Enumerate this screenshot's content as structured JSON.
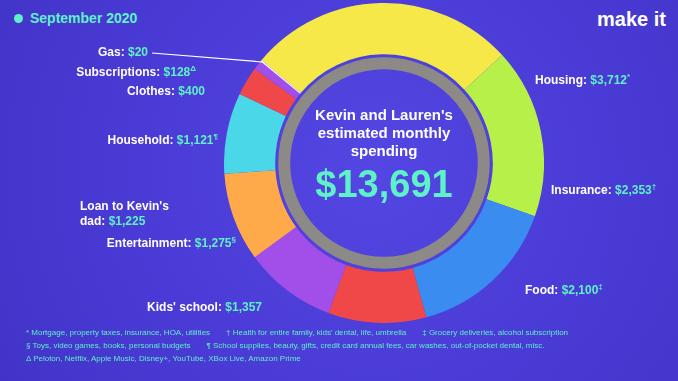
{
  "chart_data": {
    "type": "doughnut",
    "title": "September 2020",
    "logo": "make it",
    "center_text": "Kevin and Lauren's estimated monthly spending",
    "center_total": "$13,691",
    "categories": [
      "Housing:",
      "Insurance:",
      "Food:",
      "Kids' school:",
      "Entertainment:",
      "Loan to Kevin's dad:",
      "Household:",
      "Clothes:",
      "Subscriptions:",
      "Gas:"
    ],
    "values": [
      3712,
      2353,
      2100,
      1357,
      1275,
      1225,
      1121,
      400,
      128,
      20
    ],
    "value_labels": [
      "$3,712",
      "$2,353",
      "$2,100",
      "$1,357",
      "$1,275",
      "$1,225",
      "$1,121",
      "$400",
      "$128",
      "$20"
    ],
    "footnote_marks": [
      "*",
      "†",
      "‡",
      null,
      "§",
      null,
      "¶",
      null,
      "Δ",
      null
    ],
    "colors": [
      "#f7e84a",
      "#b8f04a",
      "#3b8cf0",
      "#f04848",
      "#a24ee8",
      "#ffaa4a",
      "#4ad8e8",
      "#f04848",
      "#a24ee8",
      "#ffffff"
    ],
    "data_labels": true,
    "footnotes": [
      "* Mortgage, property taxes, insurance, HOA, utilities",
      "† Health for entire family, kids' dental, life, umbrella",
      "‡ Grocery deliveries, alcohol subscription",
      "§ Toys, video games, books, personal budgets",
      "¶ School supplies, beauty, gifts, credit card annual fees, car washes, out-of-pocket dental, misc.",
      "Δ Peloton, Netflix, Apple Music, Disney+, YouTube, XBox Live, Amazon Prime"
    ]
  }
}
